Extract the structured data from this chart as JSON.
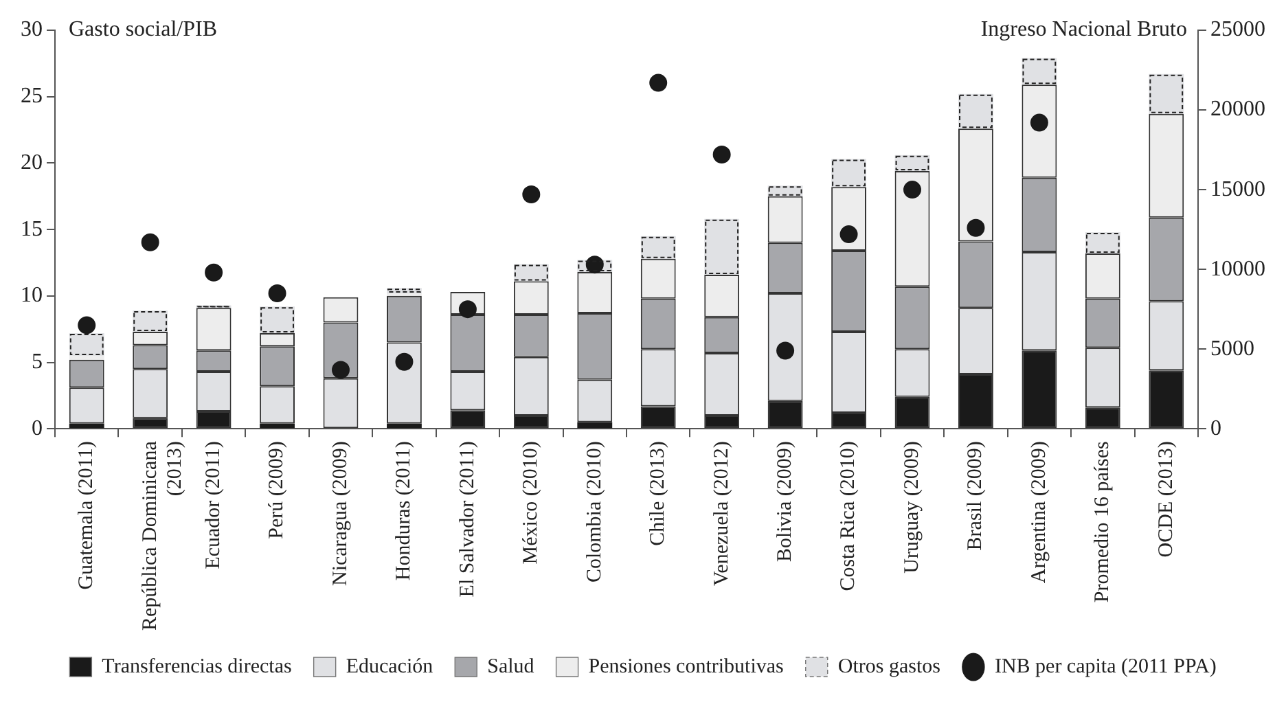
{
  "chart_data": {
    "type": "bar",
    "stacked": true,
    "ylabel": "Gasto social/PIB",
    "y2label": "Ingreso Nacional Bruto",
    "categories": [
      "Guatemala (2011)",
      "República Dominicana (2013)",
      "Ecuador (2011)",
      "Perú (2009)",
      "Nicaragua (2009)",
      "Honduras (2011)",
      "El Salvador (2011)",
      "México (2010)",
      "Colombia (2010)",
      "Chile (2013)",
      "Venezuela (2012)",
      "Bolivia (2009)",
      "Costa Rica (2010)",
      "Uruguay (2009)",
      "Brasil (2009)",
      "Argentina (2009)",
      "Promedio 16 países",
      "OCDE (2013)"
    ],
    "series": [
      {
        "name": "Transferencias directas",
        "color": "#1a1a1a",
        "values": [
          0.4,
          0.8,
          1.3,
          0.4,
          null,
          0.4,
          1.4,
          1.0,
          0.5,
          1.7,
          1.0,
          2.1,
          1.2,
          2.4,
          4.1,
          5.9,
          1.6,
          4.4
        ]
      },
      {
        "name": "Educación",
        "color": "#e0e1e4",
        "values": [
          2.7,
          3.7,
          3.0,
          2.8,
          3.8,
          6.1,
          2.9,
          4.4,
          3.2,
          4.3,
          4.7,
          8.1,
          6.1,
          3.6,
          5.0,
          7.4,
          4.5,
          5.2
        ]
      },
      {
        "name": "Salud",
        "color": "#a6a7ab",
        "values": [
          2.1,
          1.8,
          1.6,
          3.0,
          4.2,
          3.5,
          4.3,
          3.2,
          5.0,
          3.8,
          2.7,
          3.8,
          6.1,
          4.7,
          5.0,
          5.6,
          3.7,
          6.3
        ]
      },
      {
        "name": "Pensiones contributivas",
        "color": "#ededed",
        "values": [
          0.3,
          1.0,
          3.2,
          1.0,
          1.9,
          0.2,
          1.7,
          2.5,
          3.1,
          3.0,
          3.2,
          3.5,
          4.8,
          8.7,
          8.5,
          7.0,
          3.4,
          7.8
        ]
      },
      {
        "name": "Otros gastos",
        "color": "#e0e1e4",
        "line_style": "dashed",
        "values": [
          1.7,
          1.6,
          0.2,
          2.0,
          null,
          0.4,
          null,
          1.3,
          0.9,
          1.7,
          4.2,
          0.8,
          2.1,
          1.2,
          2.6,
          2.0,
          1.6,
          3.0
        ]
      },
      {
        "name": "INB per capita (2011 PPA)",
        "type": "scatter",
        "axis": "y2",
        "marker": "circle",
        "color": "#1a1a1a",
        "x": [
          "Guatemala (2011)",
          "República Dominicana (2013)",
          "Ecuador (2011)",
          "Perú (2009)",
          "Nicaragua (2009)",
          "Honduras (2011)",
          "El Salvador (2011)",
          "México (2010)",
          "Colombia (2010)",
          "Chile (2013)",
          "Venezuela (2012)",
          "Bolivia (2009)",
          "Costa Rica (2010)",
          "Uruguay (2009)",
          "Brasil (2009)",
          "Argentina (2009)"
        ],
        "values": [
          6500,
          11700,
          9800,
          8500,
          3700,
          4200,
          7500,
          14700,
          10300,
          21700,
          17200,
          4900,
          12200,
          15000,
          12600,
          19200
        ]
      }
    ],
    "ylim": [
      0,
      30
    ],
    "yticks": [
      0,
      5,
      10,
      15,
      20,
      25,
      30
    ],
    "y2lim": [
      0,
      25000
    ],
    "y2ticks": [
      0,
      5000,
      10000,
      15000,
      20000,
      25000
    ],
    "grid": false,
    "legend": "bottom"
  }
}
